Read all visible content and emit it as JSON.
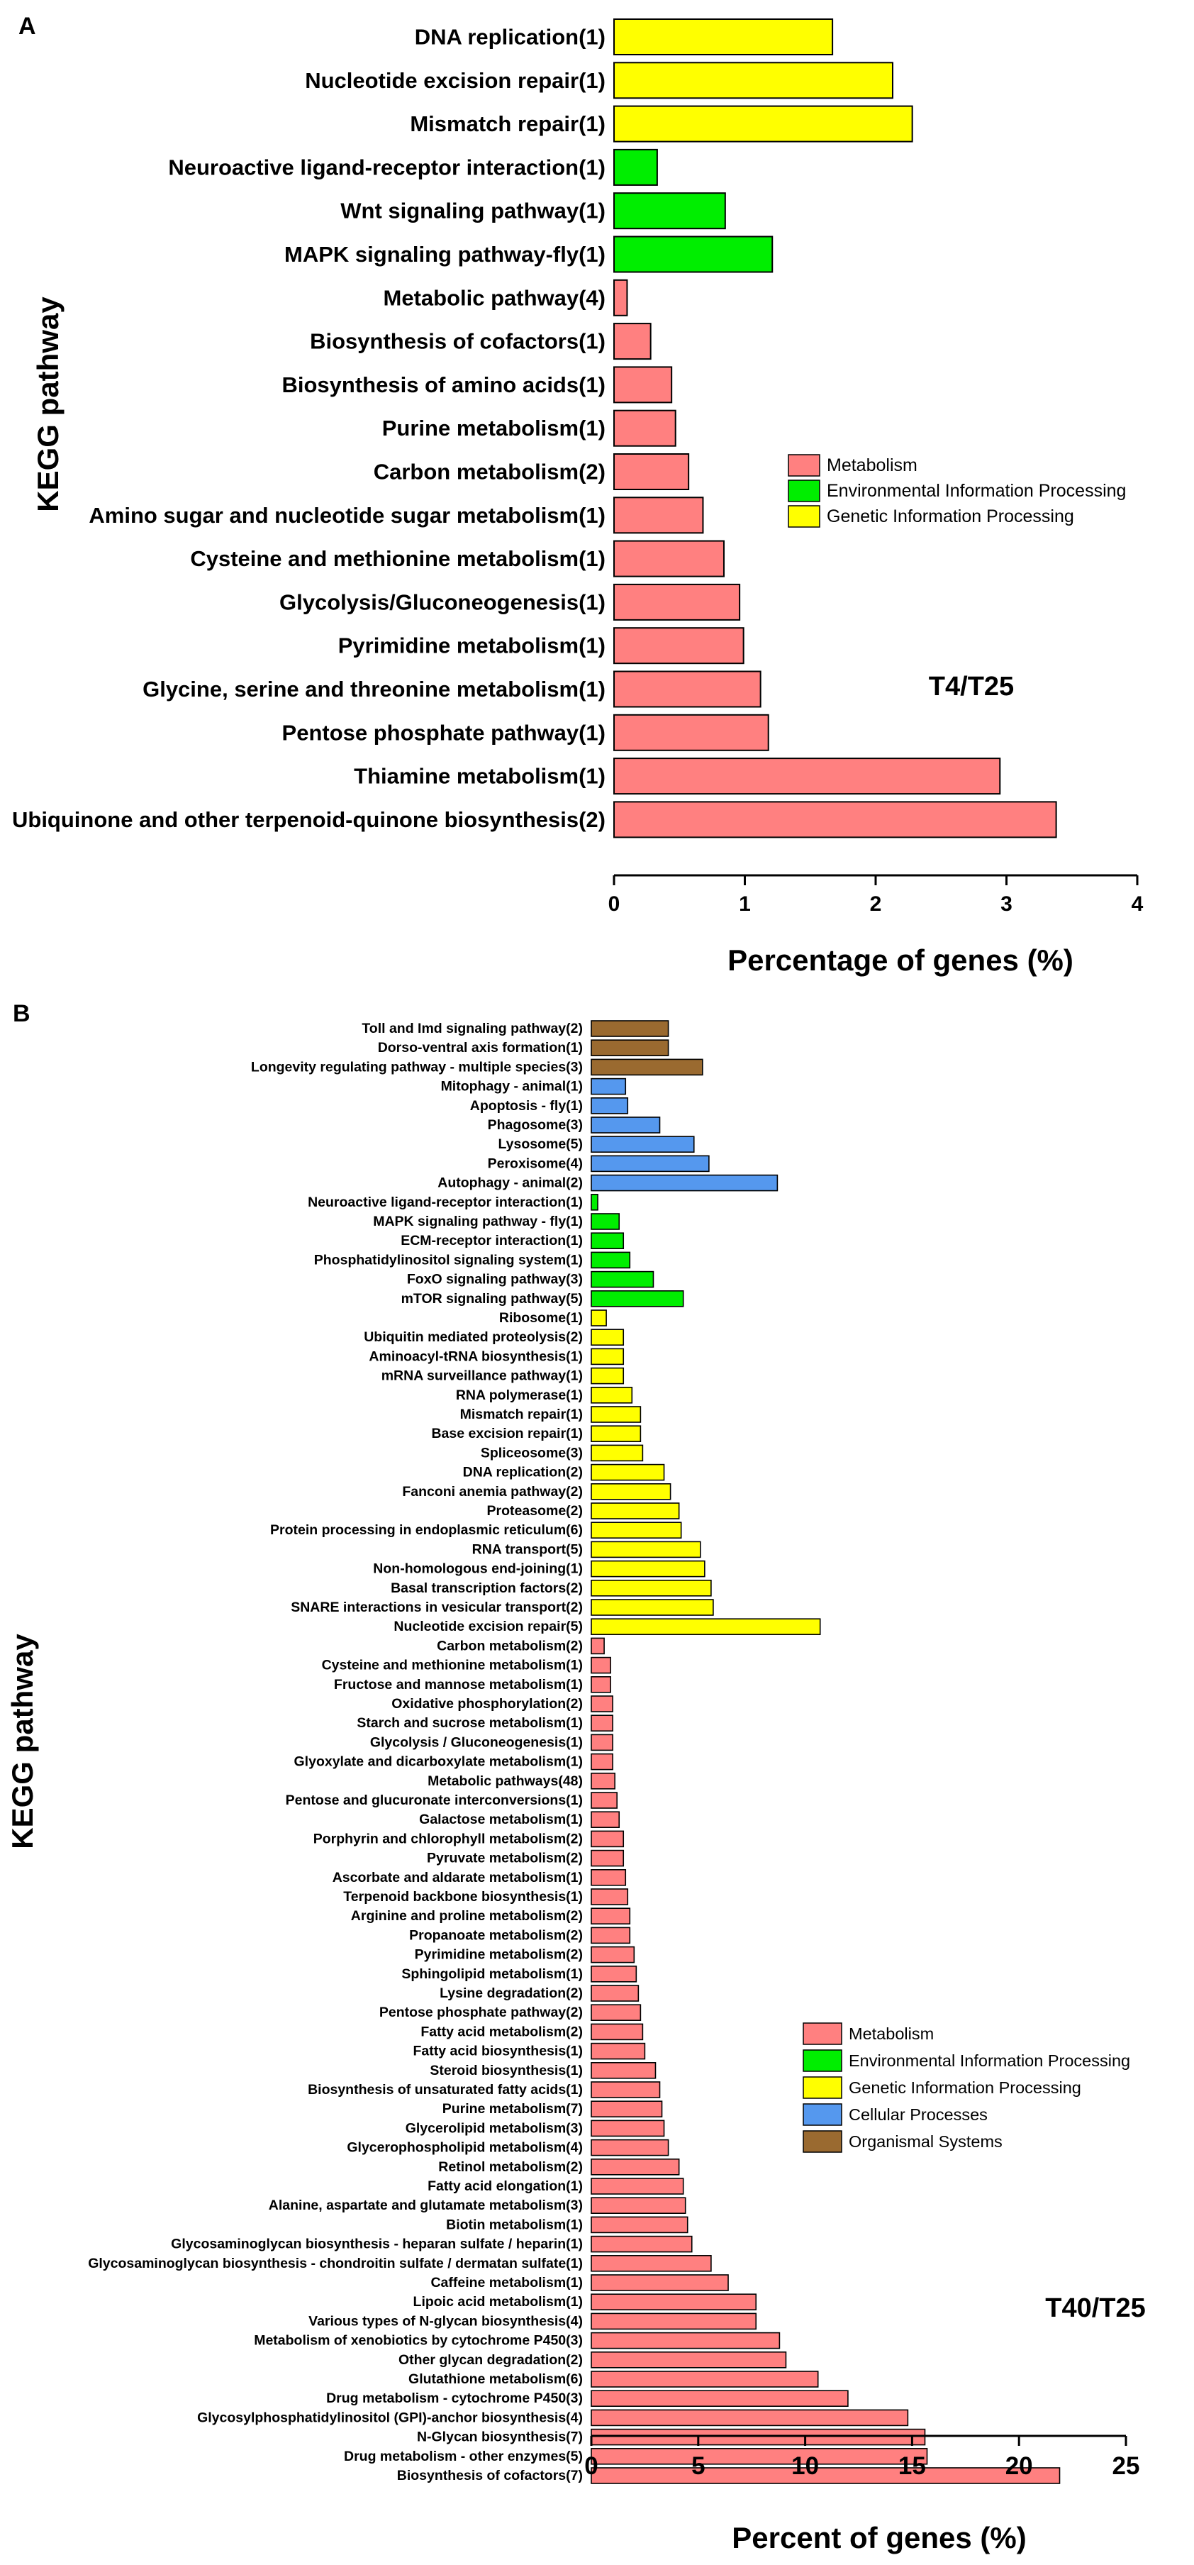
{
  "colors": {
    "Metabolism": "#ff8080",
    "Environmental Information Processing": "#00ee00",
    "Genetic Information Processing": "#ffff00",
    "Cellular Processes": "#5598ee",
    "Organismal Systems": "#9a6a30"
  },
  "chart_data": [
    {
      "type": "bar",
      "orientation": "horizontal",
      "panel_label": "A",
      "ratio_label": "T4/T25",
      "xlabel": "Percentage of genes (%)",
      "ylabel": "KEGG pathway",
      "xlim": [
        0,
        4
      ],
      "xticks": [
        0,
        1,
        2,
        3,
        4
      ],
      "legend": [
        "Metabolism",
        "Environmental Information Processing",
        "Genetic Information Processing"
      ],
      "legend_position": "center-right",
      "categories": [
        "DNA replication(1)",
        "Nucleotide excision repair(1)",
        "Mismatch repair(1)",
        "Neuroactive ligand-receptor interaction(1)",
        "Wnt signaling pathway(1)",
        "MAPK signaling pathway-fly(1)",
        "Metabolic pathway(4)",
        "Biosynthesis of cofactors(1)",
        "Biosynthesis of amino acids(1)",
        "Purine metabolism(1)",
        "Carbon metabolism(2)",
        "Amino sugar and nucleotide sugar metabolism(1)",
        "Cysteine and methionine metabolism(1)",
        "Glycolysis/Gluconeogenesis(1)",
        "Pyrimidine metabolism(1)",
        "Glycine, serine and threonine metabolism(1)",
        "Pentose phosphate pathway(1)",
        "Thiamine metabolism(1)",
        "Ubiquinone and other terpenoid-quinone biosynthesis(2)"
      ],
      "values": [
        1.67,
        2.13,
        2.28,
        0.33,
        0.85,
        1.21,
        0.1,
        0.28,
        0.44,
        0.47,
        0.57,
        0.68,
        0.84,
        0.96,
        0.99,
        1.12,
        1.18,
        2.95,
        3.38
      ],
      "groups": [
        "Genetic Information Processing",
        "Genetic Information Processing",
        "Genetic Information Processing",
        "Environmental Information Processing",
        "Environmental Information Processing",
        "Environmental Information Processing",
        "Metabolism",
        "Metabolism",
        "Metabolism",
        "Metabolism",
        "Metabolism",
        "Metabolism",
        "Metabolism",
        "Metabolism",
        "Metabolism",
        "Metabolism",
        "Metabolism",
        "Metabolism",
        "Metabolism"
      ]
    },
    {
      "type": "bar",
      "orientation": "horizontal",
      "panel_label": "B",
      "ratio_label": "T40/T25",
      "xlabel": "Percent of genes (%)",
      "ylabel": "KEGG pathway",
      "xlim": [
        0,
        25
      ],
      "xticks": [
        0,
        5,
        10,
        15,
        20,
        25
      ],
      "legend": [
        "Metabolism",
        "Environmental Information Processing",
        "Genetic Information Processing",
        "Cellular Processes",
        "Organismal Systems"
      ],
      "legend_position": "lower-right",
      "categories": [
        "Toll and Imd signaling pathway(2)",
        "Dorso-ventral axis formation(1)",
        "Longevity regulating pathway - multiple species(3)",
        "Mitophagy - animal(1)",
        "Apoptosis - fly(1)",
        "Phagosome(3)",
        "Lysosome(5)",
        "Peroxisome(4)",
        "Autophagy - animal(2)",
        "Neuroactive ligand-receptor interaction(1)",
        "MAPK signaling pathway - fly(1)",
        "ECM-receptor interaction(1)",
        "Phosphatidylinositol signaling system(1)",
        "FoxO signaling pathway(3)",
        "mTOR signaling pathway(5)",
        "Ribosome(1)",
        "Ubiquitin mediated proteolysis(2)",
        "Aminoacyl-tRNA biosynthesis(1)",
        "mRNA surveillance pathway(1)",
        "RNA polymerase(1)",
        "Mismatch repair(1)",
        "Base excision repair(1)",
        "Spliceosome(3)",
        "DNA replication(2)",
        "Fanconi anemia pathway(2)",
        "Proteasome(2)",
        "Protein processing in endoplasmic reticulum(6)",
        "RNA transport(5)",
        "Non-homologous end-joining(1)",
        "Basal transcription factors(2)",
        "SNARE interactions in vesicular transport(2)",
        "Nucleotide excision repair(5)",
        "Carbon metabolism(2)",
        "Cysteine and methionine metabolism(1)",
        "Fructose and mannose metabolism(1)",
        "Oxidative phosphorylation(2)",
        "Starch and sucrose metabolism(1)",
        "Glycolysis / Gluconeogenesis(1)",
        "Glyoxylate and dicarboxylate metabolism(1)",
        "Metabolic pathways(48)",
        "Pentose and glucuronate interconversions(1)",
        "Galactose metabolism(1)",
        "Porphyrin and chlorophyll metabolism(2)",
        "Pyruvate metabolism(2)",
        "Ascorbate and aldarate metabolism(1)",
        "Terpenoid backbone biosynthesis(1)",
        "Arginine and proline metabolism(2)",
        "Propanoate metabolism(2)",
        "Pyrimidine metabolism(2)",
        "Sphingolipid metabolism(1)",
        "Lysine degradation(2)",
        "Pentose phosphate pathway(2)",
        "Fatty acid metabolism(2)",
        "Fatty acid biosynthesis(1)",
        "Steroid biosynthesis(1)",
        "Biosynthesis of unsaturated fatty acids(1)",
        "Purine metabolism(7)",
        "Glycerolipid metabolism(3)",
        "Glycerophospholipid metabolism(4)",
        "Retinol metabolism(2)",
        "Fatty acid elongation(1)",
        "Alanine, aspartate and glutamate metabolism(3)",
        "Biotin metabolism(1)",
        "Glycosaminoglycan biosynthesis - heparan sulfate / heparin(1)",
        "Glycosaminoglycan biosynthesis - chondroitin sulfate / dermatan sulfate(1)",
        "Caffeine metabolism(1)",
        "Lipoic acid metabolism(1)",
        "Various types of N-glycan biosynthesis(4)",
        "Metabolism of xenobiotics by cytochrome P450(3)",
        "Other glycan degradation(2)",
        "Glutathione metabolism(6)",
        "Drug metabolism - cytochrome P450(3)",
        "Glycosylphosphatidylinositol (GPI)-anchor biosynthesis(4)",
        "N-Glycan biosynthesis(7)",
        "Drug metabolism - other enzymes(5)",
        "Biosynthesis of cofactors(7)"
      ],
      "values": [
        3.6,
        3.6,
        5.2,
        1.6,
        1.7,
        3.2,
        4.8,
        5.5,
        8.7,
        0.3,
        1.3,
        1.5,
        1.8,
        2.9,
        4.3,
        0.7,
        1.5,
        1.5,
        1.5,
        1.9,
        2.3,
        2.3,
        2.4,
        3.4,
        3.7,
        4.1,
        4.2,
        5.1,
        5.3,
        5.6,
        5.7,
        10.7,
        0.6,
        0.9,
        0.9,
        1.0,
        1.0,
        1.0,
        1.0,
        1.1,
        1.2,
        1.3,
        1.5,
        1.5,
        1.6,
        1.7,
        1.8,
        1.8,
        2.0,
        2.1,
        2.2,
        2.3,
        2.4,
        2.5,
        3.0,
        3.2,
        3.3,
        3.4,
        3.6,
        4.1,
        4.3,
        4.4,
        4.5,
        4.7,
        5.6,
        6.4,
        7.7,
        7.7,
        8.8,
        9.1,
        10.6,
        12.0,
        14.8,
        15.6,
        15.7,
        21.9
      ],
      "groups": [
        "Organismal Systems",
        "Organismal Systems",
        "Organismal Systems",
        "Cellular Processes",
        "Cellular Processes",
        "Cellular Processes",
        "Cellular Processes",
        "Cellular Processes",
        "Cellular Processes",
        "Environmental Information Processing",
        "Environmental Information Processing",
        "Environmental Information Processing",
        "Environmental Information Processing",
        "Environmental Information Processing",
        "Environmental Information Processing",
        "Genetic Information Processing",
        "Genetic Information Processing",
        "Genetic Information Processing",
        "Genetic Information Processing",
        "Genetic Information Processing",
        "Genetic Information Processing",
        "Genetic Information Processing",
        "Genetic Information Processing",
        "Genetic Information Processing",
        "Genetic Information Processing",
        "Genetic Information Processing",
        "Genetic Information Processing",
        "Genetic Information Processing",
        "Genetic Information Processing",
        "Genetic Information Processing",
        "Genetic Information Processing",
        "Genetic Information Processing",
        "Metabolism",
        "Metabolism",
        "Metabolism",
        "Metabolism",
        "Metabolism",
        "Metabolism",
        "Metabolism",
        "Metabolism",
        "Metabolism",
        "Metabolism",
        "Metabolism",
        "Metabolism",
        "Metabolism",
        "Metabolism",
        "Metabolism",
        "Metabolism",
        "Metabolism",
        "Metabolism",
        "Metabolism",
        "Metabolism",
        "Metabolism",
        "Metabolism",
        "Metabolism",
        "Metabolism",
        "Metabolism",
        "Metabolism",
        "Metabolism",
        "Metabolism",
        "Metabolism",
        "Metabolism",
        "Metabolism",
        "Metabolism",
        "Metabolism",
        "Metabolism",
        "Metabolism",
        "Metabolism",
        "Metabolism",
        "Metabolism",
        "Metabolism",
        "Metabolism",
        "Metabolism",
        "Metabolism",
        "Metabolism",
        "Metabolism"
      ]
    }
  ]
}
